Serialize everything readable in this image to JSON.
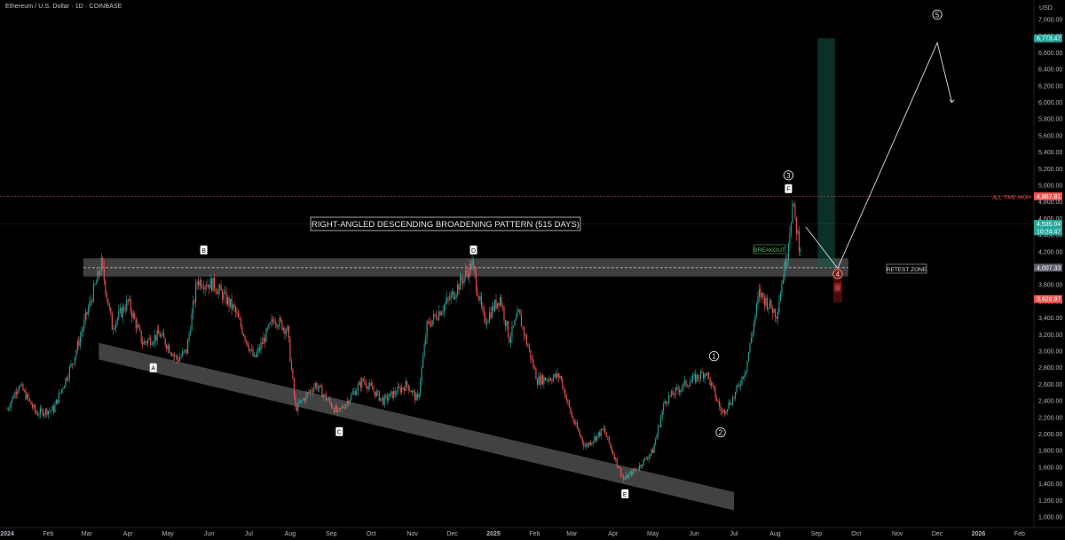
{
  "header": {
    "title": "Ethereum / U.S. Dollar · 1D · COINBASE"
  },
  "currency": "USD",
  "chart_data": {
    "type": "candlestick",
    "symbol": "Ethereum / U.S. Dollar",
    "interval": "1D",
    "exchange": "COINBASE",
    "y_ticks": [
      1000,
      1200,
      1400,
      1600,
      1800,
      2000,
      2200,
      2400,
      2600,
      2800,
      3000,
      3200,
      3400,
      3600,
      3800,
      4000,
      4200,
      4400,
      4600,
      4800,
      5000,
      5200,
      5400,
      5600,
      5800,
      6000,
      6200,
      6400,
      6600,
      6800,
      7000
    ],
    "ylim": [
      900,
      7300
    ],
    "x_ticks": [
      "2024",
      "Feb",
      "Mar",
      "Apr",
      "May",
      "Jun",
      "Jul",
      "Aug",
      "Sep",
      "Oct",
      "Nov",
      "Dec",
      "2025",
      "Feb",
      "Mar",
      "Apr",
      "May",
      "Jun",
      "Jul",
      "Aug",
      "Sep",
      "Oct",
      "Nov",
      "Dec",
      "2026",
      "Feb"
    ],
    "price_path": [
      [
        "2024-01-01",
        2300
      ],
      [
        "2024-01-10",
        2600
      ],
      [
        "2024-01-23",
        2250
      ],
      [
        "2024-02-05",
        2300
      ],
      [
        "2024-02-20",
        2900
      ],
      [
        "2024-03-01",
        3450
      ],
      [
        "2024-03-12",
        4050
      ],
      [
        "2024-03-20",
        3300
      ],
      [
        "2024-04-01",
        3600
      ],
      [
        "2024-04-12",
        3100
      ],
      [
        "2024-04-25",
        3200
      ],
      [
        "2024-05-08",
        2900
      ],
      [
        "2024-05-15",
        3000
      ],
      [
        "2024-05-23",
        3850
      ],
      [
        "2024-06-05",
        3800
      ],
      [
        "2024-06-20",
        3500
      ],
      [
        "2024-07-05",
        2900
      ],
      [
        "2024-07-20",
        3400
      ],
      [
        "2024-07-30",
        3250
      ],
      [
        "2024-08-05",
        2300
      ],
      [
        "2024-08-20",
        2600
      ],
      [
        "2024-09-06",
        2250
      ],
      [
        "2024-09-25",
        2650
      ],
      [
        "2024-10-10",
        2400
      ],
      [
        "2024-10-28",
        2600
      ],
      [
        "2024-11-05",
        2400
      ],
      [
        "2024-11-12",
        3300
      ],
      [
        "2024-11-30",
        3650
      ],
      [
        "2024-12-16",
        4050
      ],
      [
        "2024-12-25",
        3350
      ],
      [
        "2025-01-06",
        3650
      ],
      [
        "2025-01-13",
        3150
      ],
      [
        "2025-01-20",
        3450
      ],
      [
        "2025-02-03",
        2650
      ],
      [
        "2025-02-20",
        2700
      ],
      [
        "2025-03-01",
        2200
      ],
      [
        "2025-03-11",
        1850
      ],
      [
        "2025-03-25",
        2050
      ],
      [
        "2025-04-09",
        1450
      ],
      [
        "2025-04-20",
        1600
      ],
      [
        "2025-05-01",
        1800
      ],
      [
        "2025-05-10",
        2400
      ],
      [
        "2025-05-25",
        2600
      ],
      [
        "2025-06-10",
        2750
      ],
      [
        "2025-06-22",
        2250
      ],
      [
        "2025-07-01",
        2450
      ],
      [
        "2025-07-10",
        2800
      ],
      [
        "2025-07-20",
        3700
      ],
      [
        "2025-08-02",
        3450
      ],
      [
        "2025-08-10",
        4200
      ],
      [
        "2025-08-14",
        4760
      ],
      [
        "2025-08-19",
        4300
      ],
      [
        "2025-08-20",
        4280
      ]
    ],
    "patterns": {
      "upper_zone": {
        "start": "2024-03-01",
        "end": "2025-09-25",
        "low": 3900,
        "high": 4120
      },
      "retest_line": 4007,
      "lower_band": {
        "start": "2024-03-10",
        "end": "2025-07-01",
        "y_start_top": 3100,
        "y_start_bottom": 2900,
        "y_end_top": 1300,
        "y_end_bottom": 1080
      },
      "projection_path": [
        [
          "2025-08-24",
          4500
        ],
        [
          "2025-09-17",
          4000
        ],
        [
          "2025-12-01",
          6720
        ],
        [
          "2025-12-12",
          6000
        ]
      ],
      "target_box": {
        "start": "2025-09-02",
        "end": "2025-09-15",
        "low": 4007,
        "high": 6773
      }
    },
    "point_labels": [
      {
        "text": "A",
        "date": "2024-04-20",
        "price": 2800
      },
      {
        "text": "B",
        "date": "2024-05-28",
        "price": 4220
      },
      {
        "text": "C",
        "date": "2024-09-07",
        "price": 2030
      },
      {
        "text": "D",
        "date": "2024-12-17",
        "price": 4220
      },
      {
        "text": "E",
        "date": "2025-04-10",
        "price": 1280
      },
      {
        "text": "F",
        "date": "2025-08-11",
        "price": 4960
      },
      {
        "text": "G",
        "date": "2025-09-17",
        "price": 3770
      }
    ],
    "wave_labels": [
      {
        "text": "1",
        "date": "2025-06-16",
        "price": 2940
      },
      {
        "text": "2",
        "date": "2025-06-21",
        "price": 2020
      },
      {
        "text": "3",
        "date": "2025-08-11",
        "price": 5120
      },
      {
        "text": "4",
        "date": "2025-09-17",
        "price": 3930
      },
      {
        "text": "5",
        "date": "2025-12-01",
        "price": 7060
      }
    ]
  },
  "annotations": {
    "pattern_title": "RIGHT-ANGLED DESCENDING BROADENING PATTERN (515 DAYS)",
    "breakout": "BREAKOUT",
    "retest_zone": "RETEST ZONE",
    "all_time_high": "ALL TIME HIGH"
  },
  "price_tags": [
    {
      "label": "6,773.47",
      "price": 6773,
      "color": "#26a69a"
    },
    {
      "label": "4,867.81",
      "price": 4868,
      "color": "#ef5350"
    },
    {
      "label": "4,535.04",
      "price": 4535,
      "color": "#26a69a"
    },
    {
      "label": "10:24:47",
      "price": 4445,
      "color": "#26a69a"
    },
    {
      "label": "4,007.33",
      "price": 4007,
      "color": "#5d606b"
    },
    {
      "label": "3,628.97",
      "price": 3629,
      "color": "#ef5350"
    }
  ],
  "colors": {
    "up": "#26a69a",
    "down": "#ef5350",
    "background": "#000000"
  }
}
